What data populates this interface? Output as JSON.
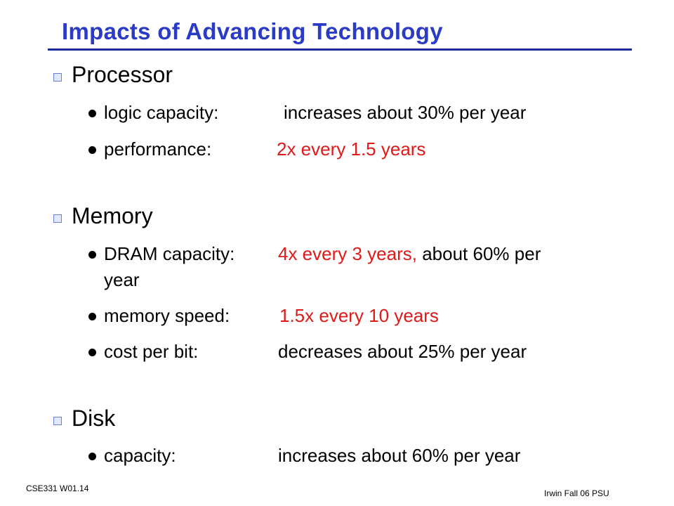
{
  "slide": {
    "title": "Impacts of Advancing Technology",
    "sections": {
      "processor": {
        "heading": "Processor",
        "items": [
          {
            "label": "logic capacity:",
            "value": "increases about 30% per year"
          },
          {
            "label": "performance:",
            "value": "2x every 1.5 years"
          }
        ]
      },
      "memory": {
        "heading": "Memory",
        "items": [
          {
            "label": "DRAM capacity:",
            "value": "4x every 3 years,",
            "value_tail": "about 60% per",
            "continuation": "year"
          },
          {
            "label": "memory speed:",
            "value": "1.5x every 10 years"
          },
          {
            "label": "cost per bit:",
            "value": "decreases about 25% per year"
          }
        ]
      },
      "disk": {
        "heading": "Disk",
        "items": [
          {
            "label": "capacity:",
            "value": "increases about 60% per year"
          }
        ]
      }
    },
    "footer": {
      "left": "CSE331  W01.14",
      "right": "Irwin Fall 06  PSU"
    }
  },
  "colors": {
    "title": "#2a3bc6",
    "rule": "#1d2a9c",
    "highlight": "#e01919",
    "text": "#000000"
  }
}
